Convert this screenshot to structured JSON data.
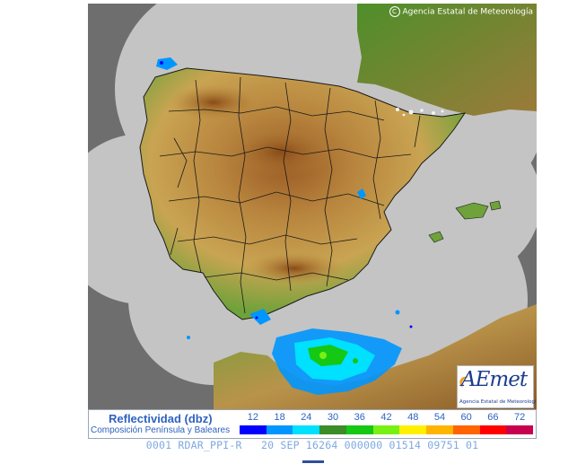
{
  "copyright": "Agencia Estatal de Meteorología",
  "copyright_symbol": "C",
  "logo": {
    "wordmark": "AEmet",
    "subtitle": "Agencia Estatal de Meteorología"
  },
  "legend": {
    "title": "Reflectividad (dbz)",
    "subtitle": "Composición Península y Baleares",
    "scale": [
      {
        "value": "12",
        "color": "#0000ff"
      },
      {
        "value": "18",
        "color": "#0096ff"
      },
      {
        "value": "24",
        "color": "#00e0ff"
      },
      {
        "value": "30",
        "color": "#3c8c28"
      },
      {
        "value": "36",
        "color": "#14c814"
      },
      {
        "value": "42",
        "color": "#78f014"
      },
      {
        "value": "48",
        "color": "#fff000"
      },
      {
        "value": "54",
        "color": "#ffb400"
      },
      {
        "value": "60",
        "color": "#ff6400"
      },
      {
        "value": "66",
        "color": "#ff0000"
      },
      {
        "value": "72",
        "color": "#c80050"
      }
    ]
  },
  "status_line": "0001 RDAR_PPI-R   20 SEP 16264 000000 01514 09751 01",
  "colors": {
    "background_no_coverage": "#6e6e6e",
    "radar_coverage": "#c4c4c4",
    "sea": "#c4c4c4",
    "land_low": "#5e9a34",
    "land_mid": "#c8a050",
    "land_high": "#8a4c18",
    "borders": "#1a1a1a"
  }
}
